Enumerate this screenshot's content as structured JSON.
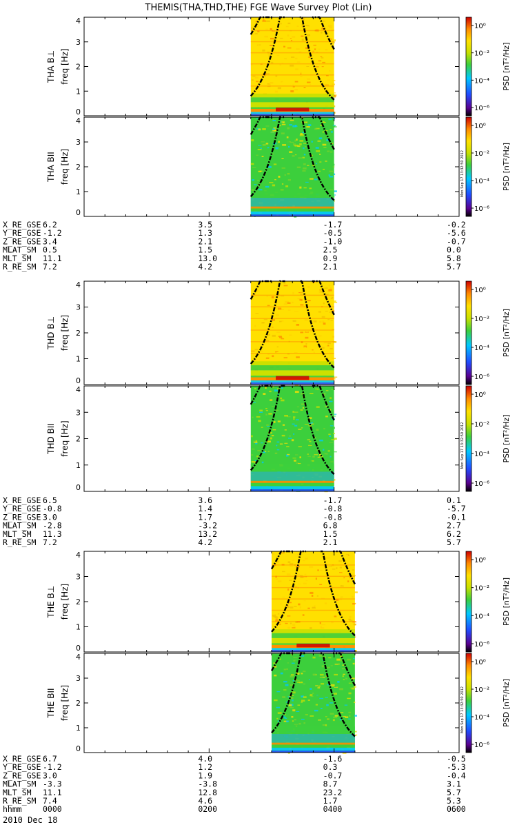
{
  "title": "THEMIS(THA,THD,THE) FGE Wave Survey Plot (Lin)",
  "date_label": "2010 Dec 18",
  "time_label_name": "hhmm",
  "colorbar": {
    "label_prefix": "PSD",
    "label_unit": "[nT²/Hz]",
    "ticks": [
      "10⁰",
      "10⁻²",
      "10⁻⁴",
      "10⁻⁶"
    ],
    "stamp": "Mon Sep 17 13:32:50 2012"
  },
  "chart_data": [
    {
      "type": "heatmap",
      "probe": "THA",
      "panels": [
        {
          "ylabel_top": "THA B⊥",
          "ylabel_bottom": "freq [Hz]",
          "component": "perp"
        },
        {
          "ylabel_top": "THA BII",
          "ylabel_bottom": "freq [Hz]",
          "component": "par"
        }
      ],
      "y_ticks": [
        "0",
        "1",
        "2",
        "3",
        "4"
      ],
      "ylim": [
        0,
        4
      ],
      "data_range_hhmm": [
        "0240",
        "0400"
      ],
      "ephemeris": [
        {
          "name": "X_RE_GSE",
          "values": [
            "6.2",
            "3.5",
            "-1.7",
            "-0.2"
          ]
        },
        {
          "name": "Y_RE_GSE",
          "values": [
            "-1.2",
            "1.3",
            "-0.5",
            "-5.6"
          ]
        },
        {
          "name": "Z_RE_GSE",
          "values": [
            "3.4",
            "2.1",
            "-1.0",
            "-0.7"
          ]
        },
        {
          "name": "MLAT_SM",
          "values": [
            "0.5",
            "1.5",
            "2.5",
            "0.0"
          ]
        },
        {
          "name": "MLT_SM",
          "values": [
            "11.1",
            "13.0",
            "0.9",
            "5.8"
          ]
        },
        {
          "name": "R_RE_SM",
          "values": [
            "7.2",
            "4.2",
            "2.1",
            "5.7"
          ]
        }
      ]
    },
    {
      "type": "heatmap",
      "probe": "THD",
      "panels": [
        {
          "ylabel_top": "THD B⊥",
          "ylabel_bottom": "freq [Hz]",
          "component": "perp"
        },
        {
          "ylabel_top": "THD BII",
          "ylabel_bottom": "freq [Hz]",
          "component": "par"
        }
      ],
      "y_ticks": [
        "0",
        "1",
        "2",
        "3",
        "4"
      ],
      "ylim": [
        0,
        4
      ],
      "data_range_hhmm": [
        "0240",
        "0400"
      ],
      "ephemeris": [
        {
          "name": "X_RE_GSE",
          "values": [
            "6.5",
            "3.6",
            "-1.7",
            "0.1"
          ]
        },
        {
          "name": "Y_RE_GSE",
          "values": [
            "-0.8",
            "1.4",
            "-0.8",
            "-5.7"
          ]
        },
        {
          "name": "Z_RE_GSE",
          "values": [
            "3.0",
            "1.7",
            "-0.8",
            "-0.1"
          ]
        },
        {
          "name": "MLAT_SM",
          "values": [
            "-2.8",
            "-3.2",
            "6.8",
            "2.7"
          ]
        },
        {
          "name": "MLT_SM",
          "values": [
            "11.3",
            "13.2",
            "1.5",
            "6.2"
          ]
        },
        {
          "name": "R_RE_SM",
          "values": [
            "7.2",
            "4.2",
            "2.1",
            "5.7"
          ]
        }
      ]
    },
    {
      "type": "heatmap",
      "probe": "THE",
      "panels": [
        {
          "ylabel_top": "THE B⊥",
          "ylabel_bottom": "freq [Hz]",
          "component": "perp"
        },
        {
          "ylabel_top": "THE BII",
          "ylabel_bottom": "freq [Hz]",
          "component": "par"
        }
      ],
      "y_ticks": [
        "0",
        "1",
        "2",
        "3",
        "4"
      ],
      "ylim": [
        0,
        4
      ],
      "data_range_hhmm": [
        "0300",
        "0420"
      ],
      "ephemeris": [
        {
          "name": "X_RE_GSE",
          "values": [
            "6.7",
            "4.0",
            "-1.6",
            "-0.5"
          ]
        },
        {
          "name": "Y_RE_GSE",
          "values": [
            "-1.2",
            "1.2",
            "0.3",
            "-5.3"
          ]
        },
        {
          "name": "Z_RE_GSE",
          "values": [
            "3.0",
            "1.9",
            "-0.7",
            "-0.4"
          ]
        },
        {
          "name": "MLAT_SM",
          "values": [
            "-3.3",
            "-3.8",
            "8.7",
            "3.1"
          ]
        },
        {
          "name": "MLT_SM",
          "values": [
            "11.1",
            "12.8",
            "23.2",
            "5.7"
          ]
        },
        {
          "name": "R_RE_SM",
          "values": [
            "7.4",
            "4.6",
            "1.7",
            "5.3"
          ]
        },
        {
          "name": "hhmm",
          "values": [
            "0000",
            "0200",
            "0400",
            "0600"
          ]
        }
      ]
    }
  ],
  "colors": {
    "low": "#000000",
    "blue": "#1f4dff",
    "cyan": "#00c8ff",
    "green": "#3ccf3c",
    "yellow": "#ffe000",
    "orange": "#ff8a00",
    "red": "#d00000"
  }
}
